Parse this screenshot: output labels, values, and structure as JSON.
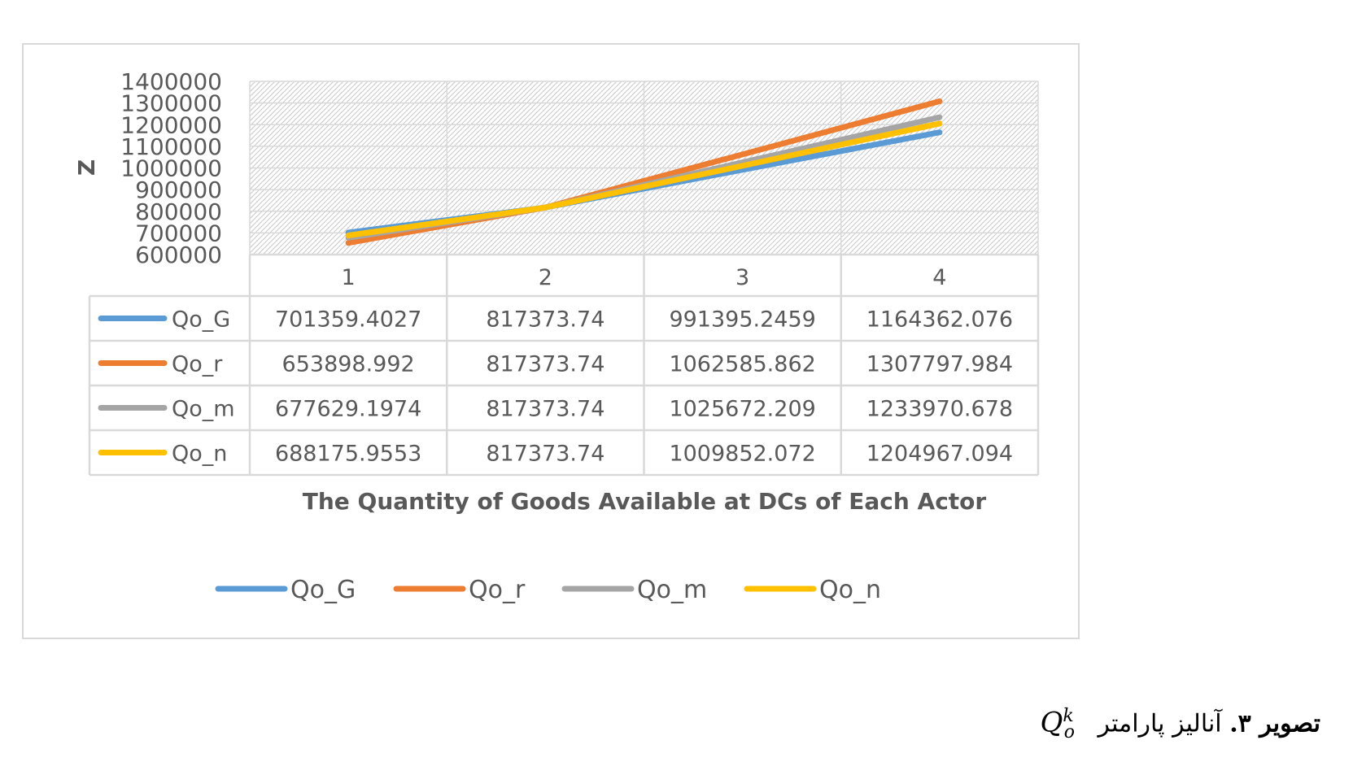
{
  "chart_data": {
    "type": "line",
    "categories": [
      "1",
      "2",
      "3",
      "4"
    ],
    "series": [
      {
        "name": "Qo_G",
        "color": "#5b9bd5",
        "values": [
          701359.4027,
          817373.74,
          991395.2459,
          1164362.076
        ],
        "labels": [
          "701359.4027",
          "817373.74",
          "991395.2459",
          "1164362.076"
        ]
      },
      {
        "name": "Qo_r",
        "color": "#ed7d31",
        "values": [
          653898.992,
          817373.74,
          1062585.862,
          1307797.984
        ],
        "labels": [
          "653898.992",
          "817373.74",
          "1062585.862",
          "1307797.984"
        ]
      },
      {
        "name": "Qo_m",
        "color": "#a5a5a5",
        "values": [
          677629.1974,
          817373.74,
          1025672.209,
          1233970.678
        ],
        "labels": [
          "677629.1974",
          "817373.74",
          "1025672.209",
          "1233970.678"
        ]
      },
      {
        "name": "Qo_n",
        "color": "#ffc000",
        "values": [
          688175.9553,
          817373.74,
          1009852.072,
          1204967.094
        ],
        "labels": [
          "688175.9553",
          "817373.74",
          "1009852.072",
          "1204967.094"
        ]
      }
    ],
    "ylim": [
      600000,
      1400000
    ],
    "yticks": [
      "1400000",
      "1300000",
      "1200000",
      "1100000",
      "1000000",
      "900000",
      "800000",
      "700000",
      "600000"
    ],
    "xlabel": "The Quantity of Goods Available at DCs of Each Actor",
    "ylabel": "Z",
    "grid": true,
    "data_table": true,
    "legend_position": "bottom"
  },
  "caption": {
    "label": "تصویر ۳.",
    "text": "آنالیز پارامتر",
    "symbol": "Q",
    "superscript": "k",
    "subscript": "o"
  }
}
